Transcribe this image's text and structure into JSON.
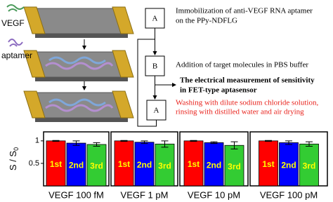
{
  "diagram": {
    "device_labels": [
      "VEGF",
      "aptamer"
    ],
    "steps": [
      {
        "box": "A",
        "lines": [
          "Immobilization of anti-VEGF RNA aptamer",
          "on the PPy-NDFLG"
        ]
      },
      {
        "box": "B",
        "lines": [
          "Addition of target molecules in PBS buffer"
        ]
      },
      {
        "lines": [
          "The electrical measurement of sensitivity",
          "in FET-type aptasensor"
        ]
      },
      {
        "box": "A",
        "lines": [
          "Washing with dilute sodium chloride solution,",
          "rinsing with distilled water and air drying"
        ]
      }
    ]
  },
  "chart_data": [
    {
      "type": "bar",
      "xlabel": "VEGF 100 fM",
      "ylabel": [
        "S / S",
        "0"
      ],
      "categories": [
        "1st",
        "2nd",
        "3rd"
      ],
      "values": [
        1.0,
        0.95,
        0.92
      ],
      "errors": [
        0.01,
        0.05,
        0.04
      ],
      "colors": [
        "#ff0000",
        "#0000ff",
        "#33cc33"
      ],
      "ylim": [
        0,
        1.2
      ],
      "yticks": [
        0.5,
        1.0
      ]
    },
    {
      "type": "bar",
      "xlabel": "VEGF 1 pM",
      "categories": [
        "1st",
        "2nd",
        "3rd"
      ],
      "values": [
        1.0,
        0.97,
        0.93
      ],
      "errors": [
        0.01,
        0.03,
        0.07
      ],
      "colors": [
        "#ff0000",
        "#0000ff",
        "#33cc33"
      ],
      "ylim": [
        0,
        1.2
      ]
    },
    {
      "type": "bar",
      "xlabel": "VEGF 10 pM",
      "categories": [
        "1st",
        "2nd",
        "3rd"
      ],
      "values": [
        1.0,
        0.96,
        0.9
      ],
      "errors": [
        0.01,
        0.02,
        0.08
      ],
      "colors": [
        "#ff0000",
        "#0000ff",
        "#33cc33"
      ],
      "ylim": [
        0,
        1.2
      ]
    },
    {
      "type": "bar",
      "xlabel": "VEGF 100 pM",
      "categories": [
        "1st",
        "2nd",
        "3rd"
      ],
      "values": [
        1.0,
        0.96,
        0.93
      ],
      "errors": [
        0.01,
        0.04,
        0.05
      ],
      "colors": [
        "#ff0000",
        "#0000ff",
        "#33cc33"
      ],
      "ylim": [
        0,
        1.2
      ]
    }
  ]
}
